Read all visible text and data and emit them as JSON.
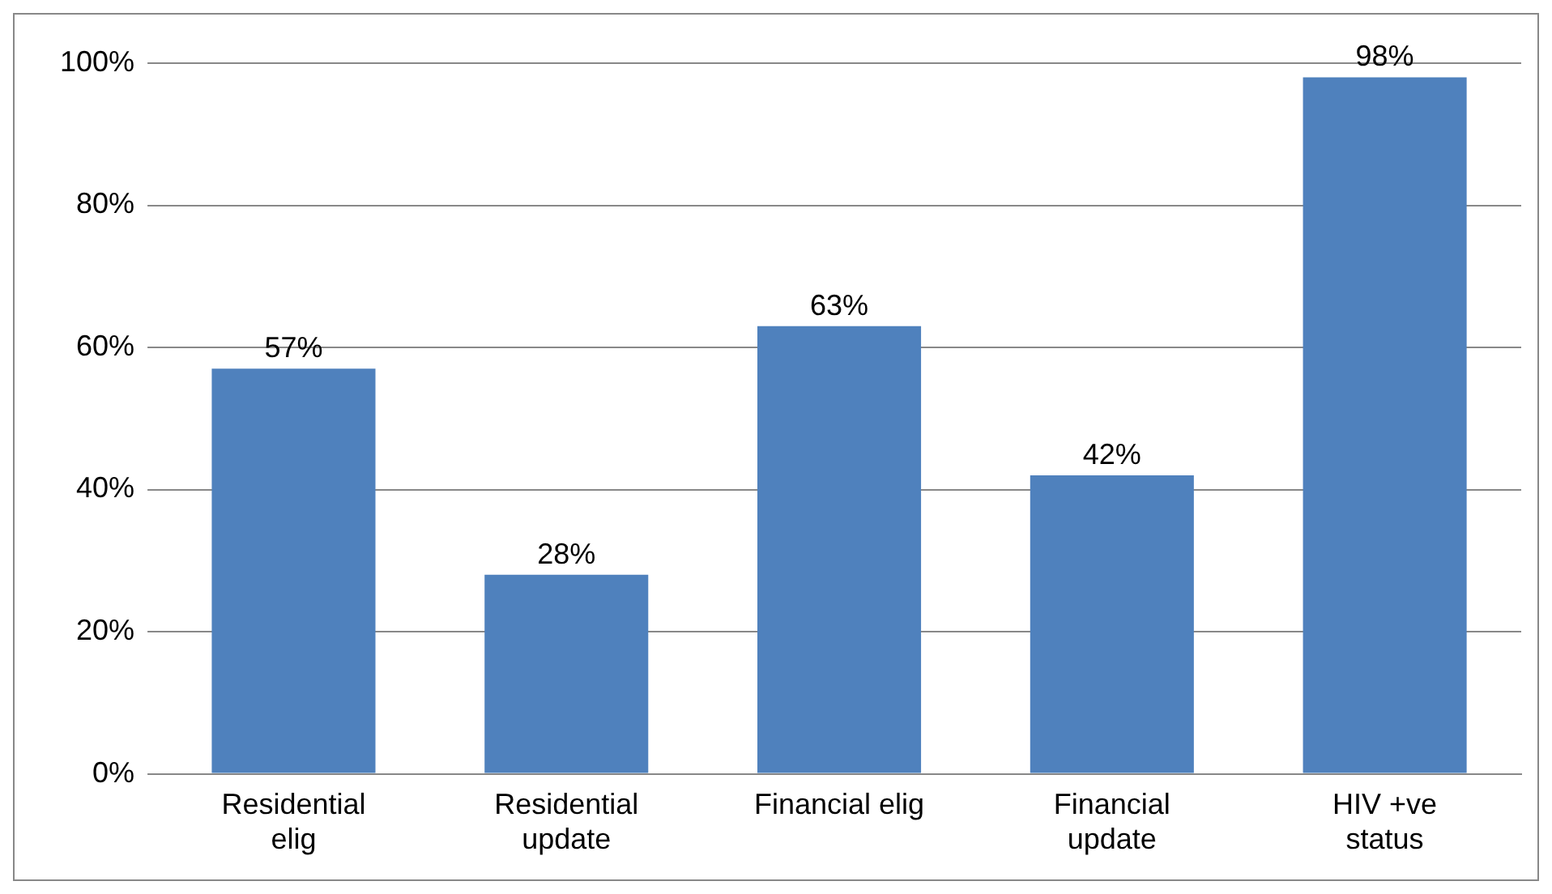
{
  "chart_data": {
    "type": "bar",
    "categories": [
      "Residential elig",
      "Residential update",
      "Financial elig",
      "Financial update",
      "HIV +ve status"
    ],
    "values": [
      57,
      28,
      63,
      42,
      98
    ],
    "color": "#4f81bd",
    "ylim": [
      0,
      100
    ],
    "yticks": [
      {
        "value": 0,
        "label": "0%"
      },
      {
        "value": 20,
        "label": "20%"
      },
      {
        "value": 40,
        "label": "40%"
      },
      {
        "value": 60,
        "label": "60%"
      },
      {
        "value": 80,
        "label": "80%"
      },
      {
        "value": 100,
        "label": "100%"
      }
    ],
    "value_labels": [
      "57%",
      "28%",
      "63%",
      "42%",
      "98%"
    ],
    "grid": "y",
    "legend": false
  }
}
